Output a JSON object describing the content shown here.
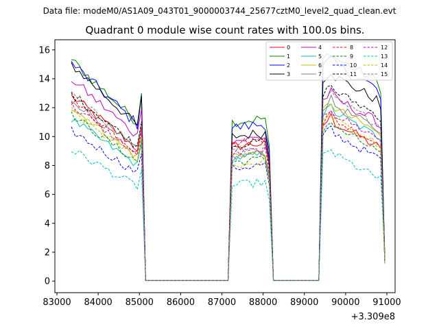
{
  "chart_data": {
    "type": "line",
    "suptitle": "Data file: modeM0/AS1A09_043T01_9000003744_25677cztM0_level2_quad_clean.evt",
    "title": "Quadrant 0 module wise count rates with 100.0s bins.",
    "xlabel": "",
    "ylabel": "",
    "x_offset_label": "+3.309e8",
    "xlim": [
      82950,
      91200
    ],
    "ylim": [
      -0.8,
      16.7
    ],
    "x_ticks": [
      83000,
      84000,
      85000,
      86000,
      87000,
      88000,
      89000,
      90000,
      91000
    ],
    "x_tick_labels": [
      "83000",
      "84000",
      "85000",
      "86000",
      "87000",
      "88000",
      "89000",
      "90000",
      "91000"
    ],
    "y_ticks": [
      0,
      2,
      4,
      6,
      8,
      10,
      12,
      14,
      16
    ],
    "y_tick_labels": [
      "0",
      "2",
      "4",
      "6",
      "8",
      "10",
      "12",
      "14",
      "16"
    ],
    "grid": false,
    "legend_position": "top-right",
    "legend_columns": 4,
    "segments": [
      {
        "start": 83350,
        "end": 85050,
        "drop_to": 85150
      },
      {
        "start": 87250,
        "end": 88150,
        "drop_to": 88250
      },
      {
        "start": 89450,
        "end": 90850,
        "drop_to": 90950
      }
    ],
    "series": [
      {
        "name": "0",
        "color": "#ff0000",
        "dash": "solid",
        "levels": [
          12.8,
          9.3,
          10.8
        ],
        "noise": 0.35
      },
      {
        "name": "1",
        "color": "#008000",
        "dash": "solid",
        "levels": [
          15.3,
          11.0,
          15.3
        ],
        "noise": 0.35
      },
      {
        "name": "2",
        "color": "#0000ff",
        "dash": "solid",
        "levels": [
          15.1,
          10.6,
          14.8
        ],
        "noise": 0.4
      },
      {
        "name": "3",
        "color": "#000000",
        "dash": "solid",
        "levels": [
          15.0,
          10.0,
          14.0
        ],
        "noise": 0.35
      },
      {
        "name": "4",
        "color": "#c000c0",
        "dash": "solid",
        "levels": [
          14.0,
          9.7,
          12.5
        ],
        "noise": 0.35
      },
      {
        "name": "5",
        "color": "#00bfbf",
        "dash": "solid",
        "levels": [
          11.2,
          8.5,
          11.5
        ],
        "noise": 0.3
      },
      {
        "name": "6",
        "color": "#bfbf00",
        "dash": "solid",
        "levels": [
          12.0,
          8.7,
          11.8
        ],
        "noise": 0.3
      },
      {
        "name": "7",
        "color": "#808080",
        "dash": "solid",
        "levels": [
          12.6,
          8.6,
          12.0
        ],
        "noise": 0.3
      },
      {
        "name": "8",
        "color": "#ff0000",
        "dash": "dashed",
        "levels": [
          12.5,
          9.5,
          11.0
        ],
        "noise": 0.3
      },
      {
        "name": "9",
        "color": "#008000",
        "dash": "dashed",
        "levels": [
          11.5,
          8.2,
          10.5
        ],
        "noise": 0.3
      },
      {
        "name": "10",
        "color": "#0000ff",
        "dash": "dashed",
        "levels": [
          10.4,
          7.8,
          10.0
        ],
        "noise": 0.3
      },
      {
        "name": "11",
        "color": "#000000",
        "dash": "dashed",
        "levels": [
          13.0,
          9.4,
          13.0
        ],
        "noise": 0.3
      },
      {
        "name": "12",
        "color": "#c000c0",
        "dash": "dashed",
        "levels": [
          12.2,
          8.8,
          11.4
        ],
        "noise": 0.3
      },
      {
        "name": "13",
        "color": "#00bfbf",
        "dash": "dashed",
        "levels": [
          9.1,
          6.6,
          8.6
        ],
        "noise": 0.3
      },
      {
        "name": "14",
        "color": "#bfbf00",
        "dash": "dashed",
        "levels": [
          11.8,
          8.0,
          11.0
        ],
        "noise": 0.3
      },
      {
        "name": "15",
        "color": "#808080",
        "dash": "dashed",
        "levels": [
          12.9,
          9.0,
          12.4
        ],
        "noise": 0.3
      }
    ]
  }
}
